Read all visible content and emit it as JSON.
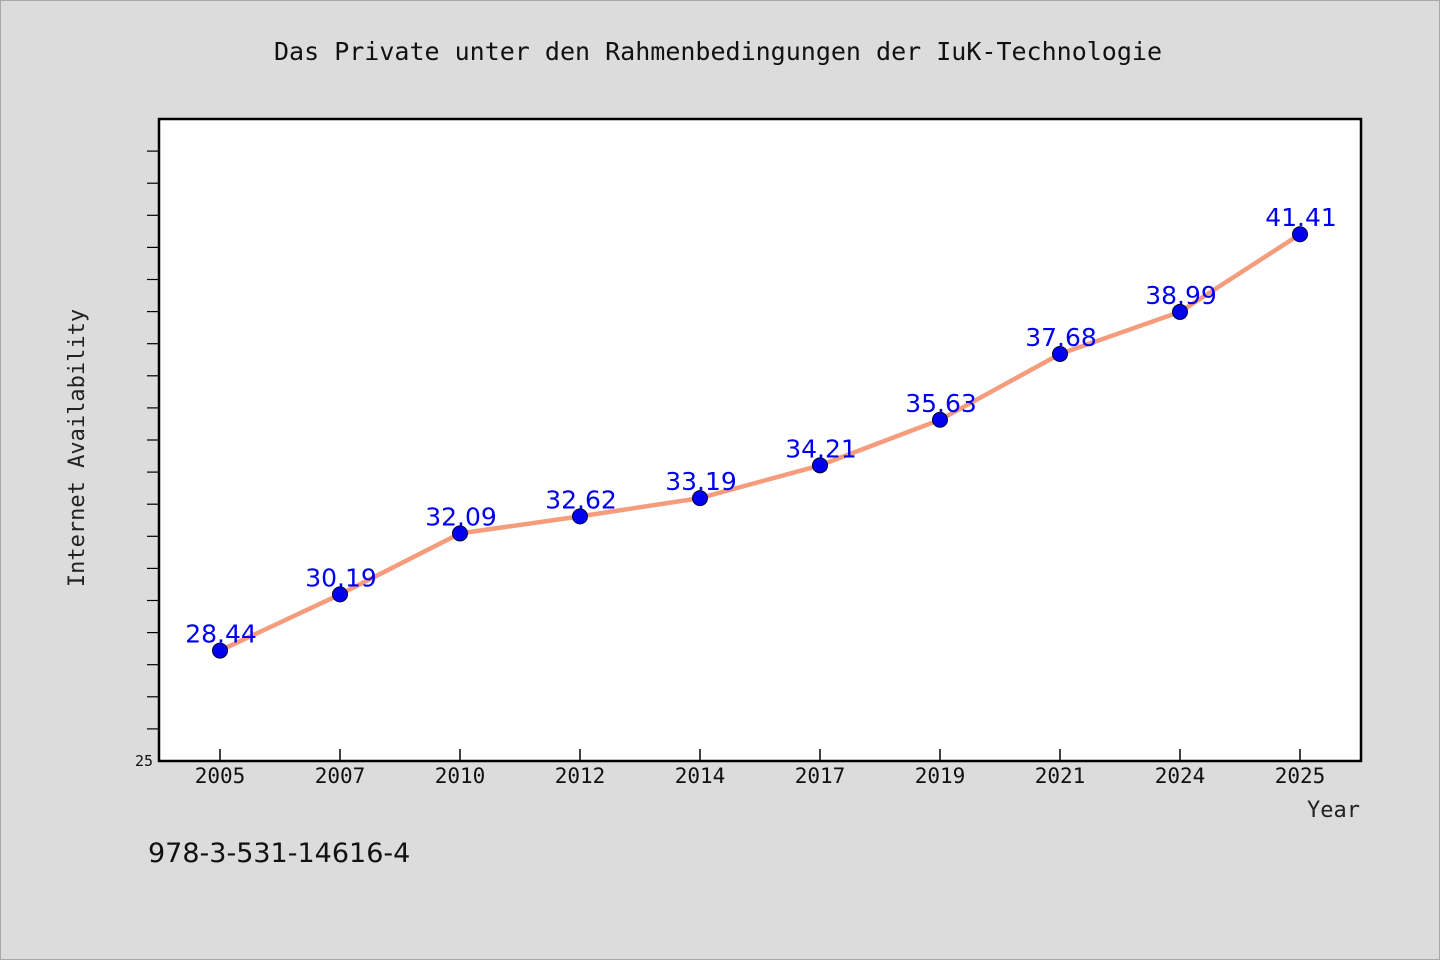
{
  "chart_data": {
    "type": "line",
    "title": "Das Private unter den Rahmenbedingungen der IuK-Technologie",
    "xlabel": "Year",
    "ylabel": "Internet Availability",
    "categories": [
      "2005",
      "2007",
      "2010",
      "2012",
      "2014",
      "2017",
      "2019",
      "2021",
      "2024",
      "2025"
    ],
    "series": [
      {
        "values": [
          28.44,
          30.19,
          32.09,
          32.62,
          33.19,
          34.21,
          35.63,
          37.68,
          38.99,
          41.41
        ],
        "labels": [
          "28.44",
          "30.19",
          "32.09",
          "32.62",
          "33.19",
          "34.21",
          "35.63",
          "37.68",
          "38.99",
          "41.41"
        ]
      }
    ],
    "ylim": [
      25,
      45
    ],
    "y_tick_labels": [
      "25"
    ],
    "grid": false,
    "legend": "none"
  },
  "colors": {
    "line": "#f59c7c",
    "marker": "#0000ee",
    "label": "#0000ee",
    "background": "#dcdcdc",
    "plot_background": "#ffffff"
  },
  "footer": {
    "isbn": "978-3-531-14616-4"
  }
}
